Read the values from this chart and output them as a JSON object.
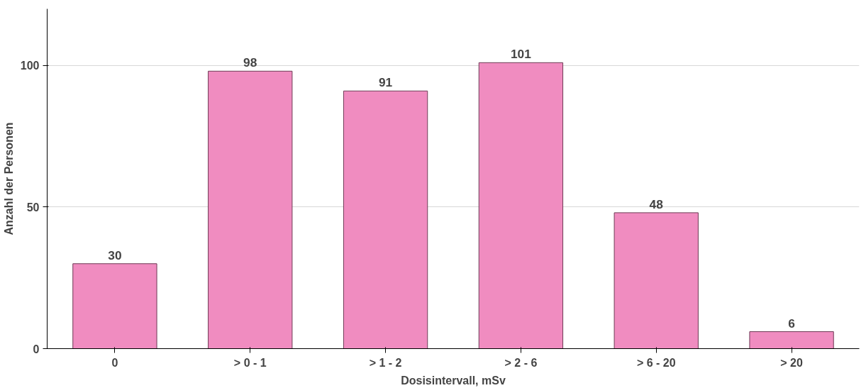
{
  "chart_data": {
    "type": "bar",
    "xlabel": "Dosisintervall, mSv",
    "ylabel": "Anzahl der Personen",
    "categories": [
      "0",
      "> 0 - 1",
      "> 1 - 2",
      "> 2 - 6",
      "> 6 - 20",
      "> 20"
    ],
    "values": [
      30,
      98,
      91,
      101,
      48,
      6
    ],
    "color": "#f08cc0",
    "ylim": [
      0,
      120
    ],
    "yticks": [
      0,
      50,
      100
    ],
    "grid": "y",
    "data_labels": true
  }
}
